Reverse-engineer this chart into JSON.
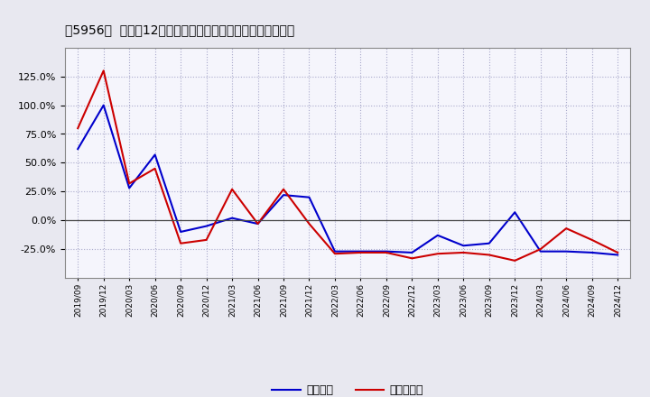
{
  "title": "［5956］  利益の12か月移動合計の対前年同期増減率の推移",
  "x_labels": [
    "2019/09",
    "2019/12",
    "2020/03",
    "2020/06",
    "2020/09",
    "2020/12",
    "2021/03",
    "2021/06",
    "2021/09",
    "2021/12",
    "2022/03",
    "2022/06",
    "2022/09",
    "2022/12",
    "2023/03",
    "2023/06",
    "2023/09",
    "2023/12",
    "2024/03",
    "2024/06",
    "2024/09",
    "2024/12"
  ],
  "keijo_rieki": [
    62,
    100,
    28,
    57,
    -10,
    -5,
    2,
    -3,
    22,
    20,
    -27,
    -27,
    -27,
    -28,
    -13,
    -22,
    -20,
    7,
    -27,
    -27,
    -28,
    -30
  ],
  "toki_jun_rieki": [
    80,
    130,
    32,
    45,
    -20,
    -17,
    27,
    -3,
    27,
    -3,
    -29,
    -28,
    -28,
    -33,
    -29,
    -28,
    -30,
    -35,
    -25,
    -7,
    -17,
    -28
  ],
  "keijo_color": "#0000cc",
  "toki_color": "#cc0000",
  "bg_color": "#e8e8f0",
  "plot_bg_color": "#f5f5fc",
  "grid_color": "#aaaacc",
  "ylim": [
    -50,
    150
  ],
  "yticks": [
    -25,
    0,
    25,
    50,
    75,
    100,
    125
  ],
  "legend_keijo": "経常利益",
  "legend_toki": "当期純利益"
}
